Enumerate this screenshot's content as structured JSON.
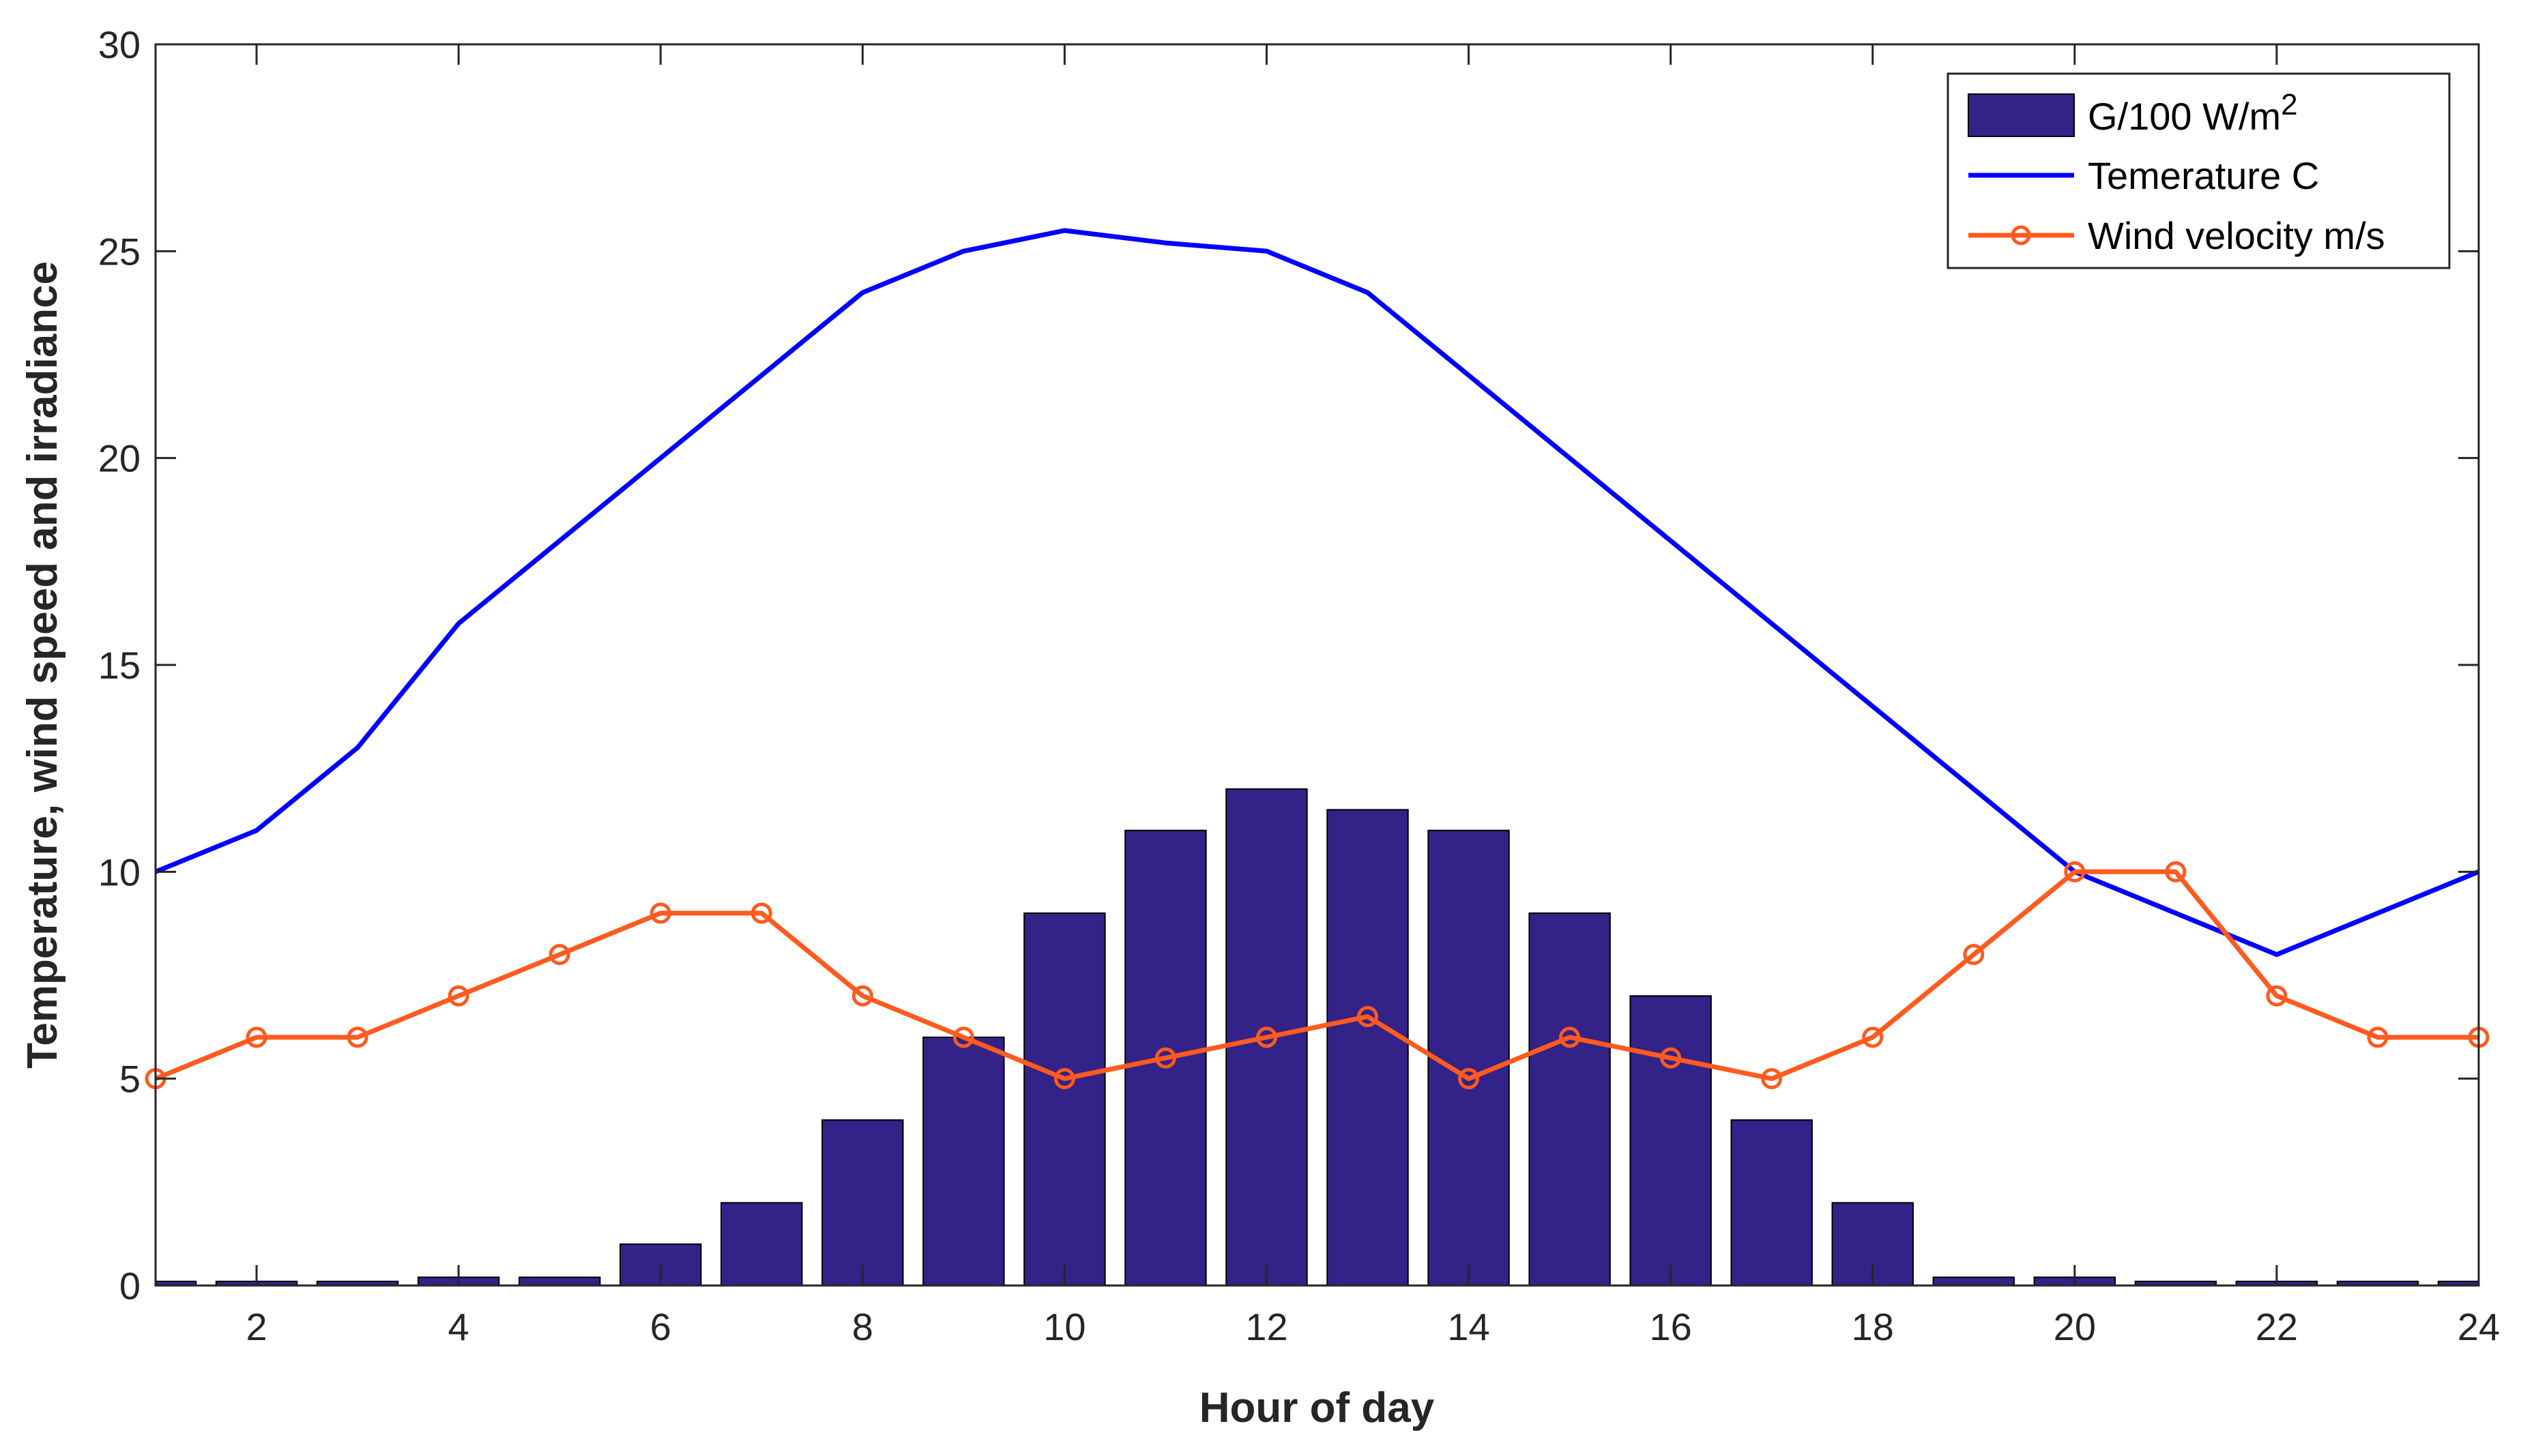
{
  "chart_data": {
    "type": "bar",
    "title": "",
    "xlabel": "Hour of day",
    "ylabel": "Temperature, wind speed and irradiance",
    "xlim": [
      1,
      24
    ],
    "ylim": [
      0,
      30
    ],
    "x": [
      1,
      2,
      3,
      4,
      5,
      6,
      7,
      8,
      9,
      10,
      11,
      12,
      13,
      14,
      15,
      16,
      17,
      18,
      19,
      20,
      21,
      22,
      23,
      24
    ],
    "xticks": [
      2,
      4,
      6,
      8,
      10,
      12,
      14,
      16,
      18,
      20,
      22,
      24
    ],
    "yticks": [
      0,
      5,
      10,
      15,
      20,
      25,
      30
    ],
    "series": [
      {
        "name": "G/100 W/m",
        "name_superscript": "2",
        "kind": "bar",
        "color": "#332288",
        "values": [
          0.1,
          0.1,
          0.1,
          0.2,
          0.2,
          1,
          2,
          4,
          6,
          9,
          11,
          12,
          11.5,
          11,
          9,
          7,
          4,
          2,
          0.2,
          0.2,
          0.1,
          0.1,
          0.1,
          0.1
        ]
      },
      {
        "name": "Temerature C",
        "kind": "line",
        "color": "#0000FF",
        "values": [
          10,
          11,
          13,
          16,
          18,
          20,
          22,
          24,
          25,
          25.5,
          25.2,
          25,
          24,
          22,
          20,
          18,
          16,
          14,
          12,
          10,
          9,
          8,
          9,
          10
        ]
      },
      {
        "name": "Wind velocity m/s",
        "kind": "line-marker",
        "color": "#FF5A1F",
        "values": [
          5,
          6,
          6,
          7,
          8,
          9,
          9,
          7,
          6,
          5,
          5.5,
          6,
          6.5,
          5,
          6,
          5.5,
          5,
          6,
          8,
          10,
          10,
          7,
          6,
          6
        ]
      }
    ],
    "legend": "top-right",
    "grid": false
  }
}
